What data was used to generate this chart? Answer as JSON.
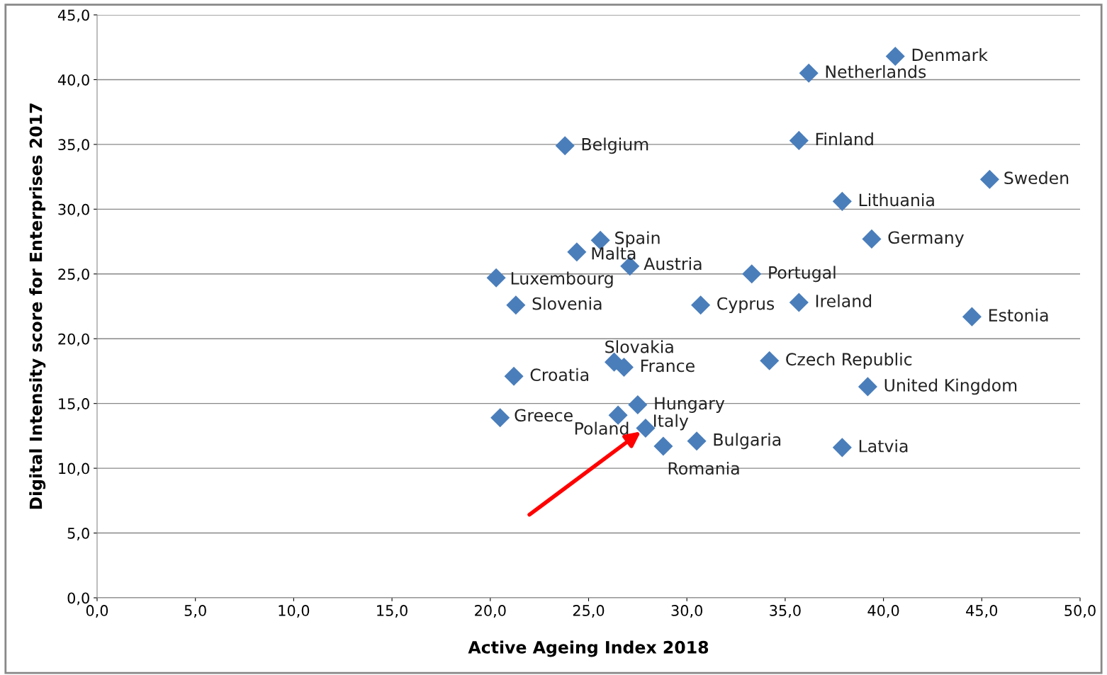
{
  "chart_data": {
    "type": "scatter",
    "xlabel": "Active Ageing Index 2018",
    "ylabel": "Digital Intensity score for Enterprises 2017",
    "marker": "diamond",
    "grid": "y",
    "xlim": [
      0,
      50
    ],
    "ylim": [
      0,
      45
    ],
    "xticks": [
      {
        "value": 0,
        "label": "0,0"
      },
      {
        "value": 5,
        "label": "5,0"
      },
      {
        "value": 10,
        "label": "10,0"
      },
      {
        "value": 15,
        "label": "15,0"
      },
      {
        "value": 20,
        "label": "20,0"
      },
      {
        "value": 25,
        "label": "25,0"
      },
      {
        "value": 30,
        "label": "30,0"
      },
      {
        "value": 35,
        "label": "35,0"
      },
      {
        "value": 40,
        "label": "40,0"
      },
      {
        "value": 45,
        "label": "45,0"
      },
      {
        "value": 50,
        "label": "50,0"
      }
    ],
    "yticks": [
      {
        "value": 0,
        "label": "0,0"
      },
      {
        "value": 5,
        "label": "5,0"
      },
      {
        "value": 10,
        "label": "10,0"
      },
      {
        "value": 15,
        "label": "15,0"
      },
      {
        "value": 20,
        "label": "20,0"
      },
      {
        "value": 25,
        "label": "25,0"
      },
      {
        "value": 30,
        "label": "30,0"
      },
      {
        "value": 35,
        "label": "35,0"
      },
      {
        "value": 40,
        "label": "40,0"
      },
      {
        "value": 45,
        "label": "45,0"
      }
    ],
    "series": [
      {
        "color": "#4a7ebb",
        "x": [
          40.6,
          36.2,
          23.8,
          35.7,
          45.4,
          37.9,
          39.4,
          25.6,
          24.4,
          27.1,
          33.3,
          20.3,
          21.3,
          30.7,
          35.7,
          44.5,
          26.3,
          26.8,
          34.2,
          21.2,
          39.2,
          27.5,
          20.5,
          26.5,
          27.9,
          30.5,
          28.8,
          37.9
        ],
        "values": [
          41.8,
          40.5,
          34.9,
          35.3,
          32.3,
          30.6,
          27.7,
          27.6,
          26.7,
          25.6,
          25.0,
          24.7,
          22.6,
          22.6,
          22.8,
          21.7,
          18.2,
          17.8,
          18.3,
          17.1,
          16.3,
          14.9,
          13.9,
          14.1,
          13.1,
          12.1,
          11.7,
          11.6
        ]
      }
    ],
    "annotations": [
      {
        "text": "Denmark",
        "x": 40.6,
        "y": 41.8
      },
      {
        "text": "Netherlands",
        "x": 36.2,
        "y": 40.5
      },
      {
        "text": "Belgium",
        "x": 23.8,
        "y": 34.9
      },
      {
        "text": "Finland",
        "x": 35.7,
        "y": 35.3
      },
      {
        "text": "Sweden",
        "x": 45.4,
        "y": 32.3
      },
      {
        "text": "Lithuania",
        "x": 37.9,
        "y": 30.6
      },
      {
        "text": "Germany",
        "x": 39.4,
        "y": 27.7
      },
      {
        "text": "Spain",
        "x": 25.6,
        "y": 27.6
      },
      {
        "text": "Malta",
        "x": 24.4,
        "y": 26.7
      },
      {
        "text": "Austria",
        "x": 27.1,
        "y": 25.6
      },
      {
        "text": "Portugal",
        "x": 33.3,
        "y": 25.0
      },
      {
        "text": "Luxembourg",
        "x": 20.3,
        "y": 24.7
      },
      {
        "text": "Slovenia",
        "x": 21.3,
        "y": 22.6
      },
      {
        "text": "Cyprus",
        "x": 30.7,
        "y": 22.6
      },
      {
        "text": "Ireland",
        "x": 35.7,
        "y": 22.8
      },
      {
        "text": "Estonia",
        "x": 44.5,
        "y": 21.7
      },
      {
        "text": "Slovakia",
        "x": 26.3,
        "y": 18.2
      },
      {
        "text": "France",
        "x": 26.8,
        "y": 17.8
      },
      {
        "text": "Czech Republic",
        "x": 34.2,
        "y": 18.3
      },
      {
        "text": "Croatia",
        "x": 21.2,
        "y": 17.1
      },
      {
        "text": "United Kingdom",
        "x": 39.2,
        "y": 16.3
      },
      {
        "text": "Hungary",
        "x": 27.5,
        "y": 14.9
      },
      {
        "text": "Greece",
        "x": 20.5,
        "y": 13.9
      },
      {
        "text": "Poland",
        "x": 26.5,
        "y": 14.1
      },
      {
        "text": "Italy",
        "x": 27.9,
        "y": 13.1
      },
      {
        "text": "Bulgaria",
        "x": 30.5,
        "y": 12.1
      },
      {
        "text": "Romania",
        "x": 28.8,
        "y": 11.7
      },
      {
        "text": "Latvia",
        "x": 37.9,
        "y": 11.6
      }
    ]
  }
}
